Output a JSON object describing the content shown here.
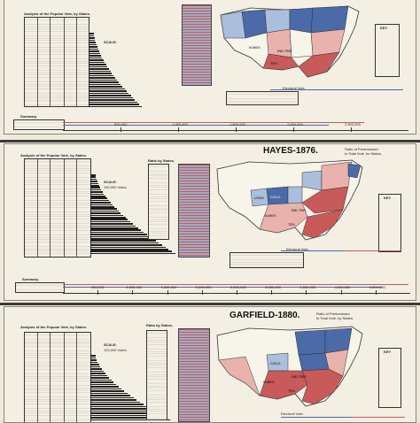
{
  "panels": [
    {
      "title": "",
      "analysis_label": "Analysis of the Popular Vote, by States.",
      "scale_label": "SCALE:",
      "scale_value": "",
      "ratio_label": "",
      "electoral_label": "Electoral Vote.",
      "summary_label": "Summary.",
      "axis": [
        "500,000",
        "1,000,000",
        "1,500,000",
        "2,000,000",
        "2,500,000"
      ],
      "map_labels": [
        "TEX.",
        "N.MEX.",
        "IND.TER."
      ]
    },
    {
      "title": "HAYES-1876.",
      "analysis_label": "Analysis of the Popular Vote, by States.",
      "scale_label": "SCALE:",
      "scale_value": "100,000 Votes",
      "ratio_label": "Ratio of Predominant to Total Vote, by States.",
      "ratio_by_states": "Ratio by States.",
      "electoral_label": "Electoral Vote.",
      "summary_label": "Summary.",
      "axis": [
        "500,000",
        "1,000,000",
        "1,500,000",
        "2,000,000",
        "2,500,000",
        "3,000,000",
        "3,500,000",
        "4,000,000",
        "4,500,000"
      ],
      "map_labels": [
        "UTAH",
        "COLO.",
        "N.MEX.",
        "TEX.",
        "IND.TER."
      ]
    },
    {
      "title": "GARFIELD-1880.",
      "analysis_label": "Analysis of the Popular Vote, by States.",
      "scale_label": "SCALE:",
      "scale_value": "100,000 Votes",
      "ratio_label": "Ratio of Predominant to Total Vote, by States.",
      "ratio_by_states": "Ratio by States.",
      "electoral_label": "Electoral Vote.",
      "summary_label": "",
      "axis": [],
      "map_labels": [
        "COLO.",
        "N.MEX.",
        "IND.TER.",
        "TEX."
      ]
    }
  ],
  "key_label": "KEY",
  "colors": {
    "rep": "#4a6aa8",
    "dem": "#c85a5a",
    "light_rep": "#a9bfdc",
    "light_dem": "#e9b2ad",
    "state": "#f7f4ea"
  }
}
